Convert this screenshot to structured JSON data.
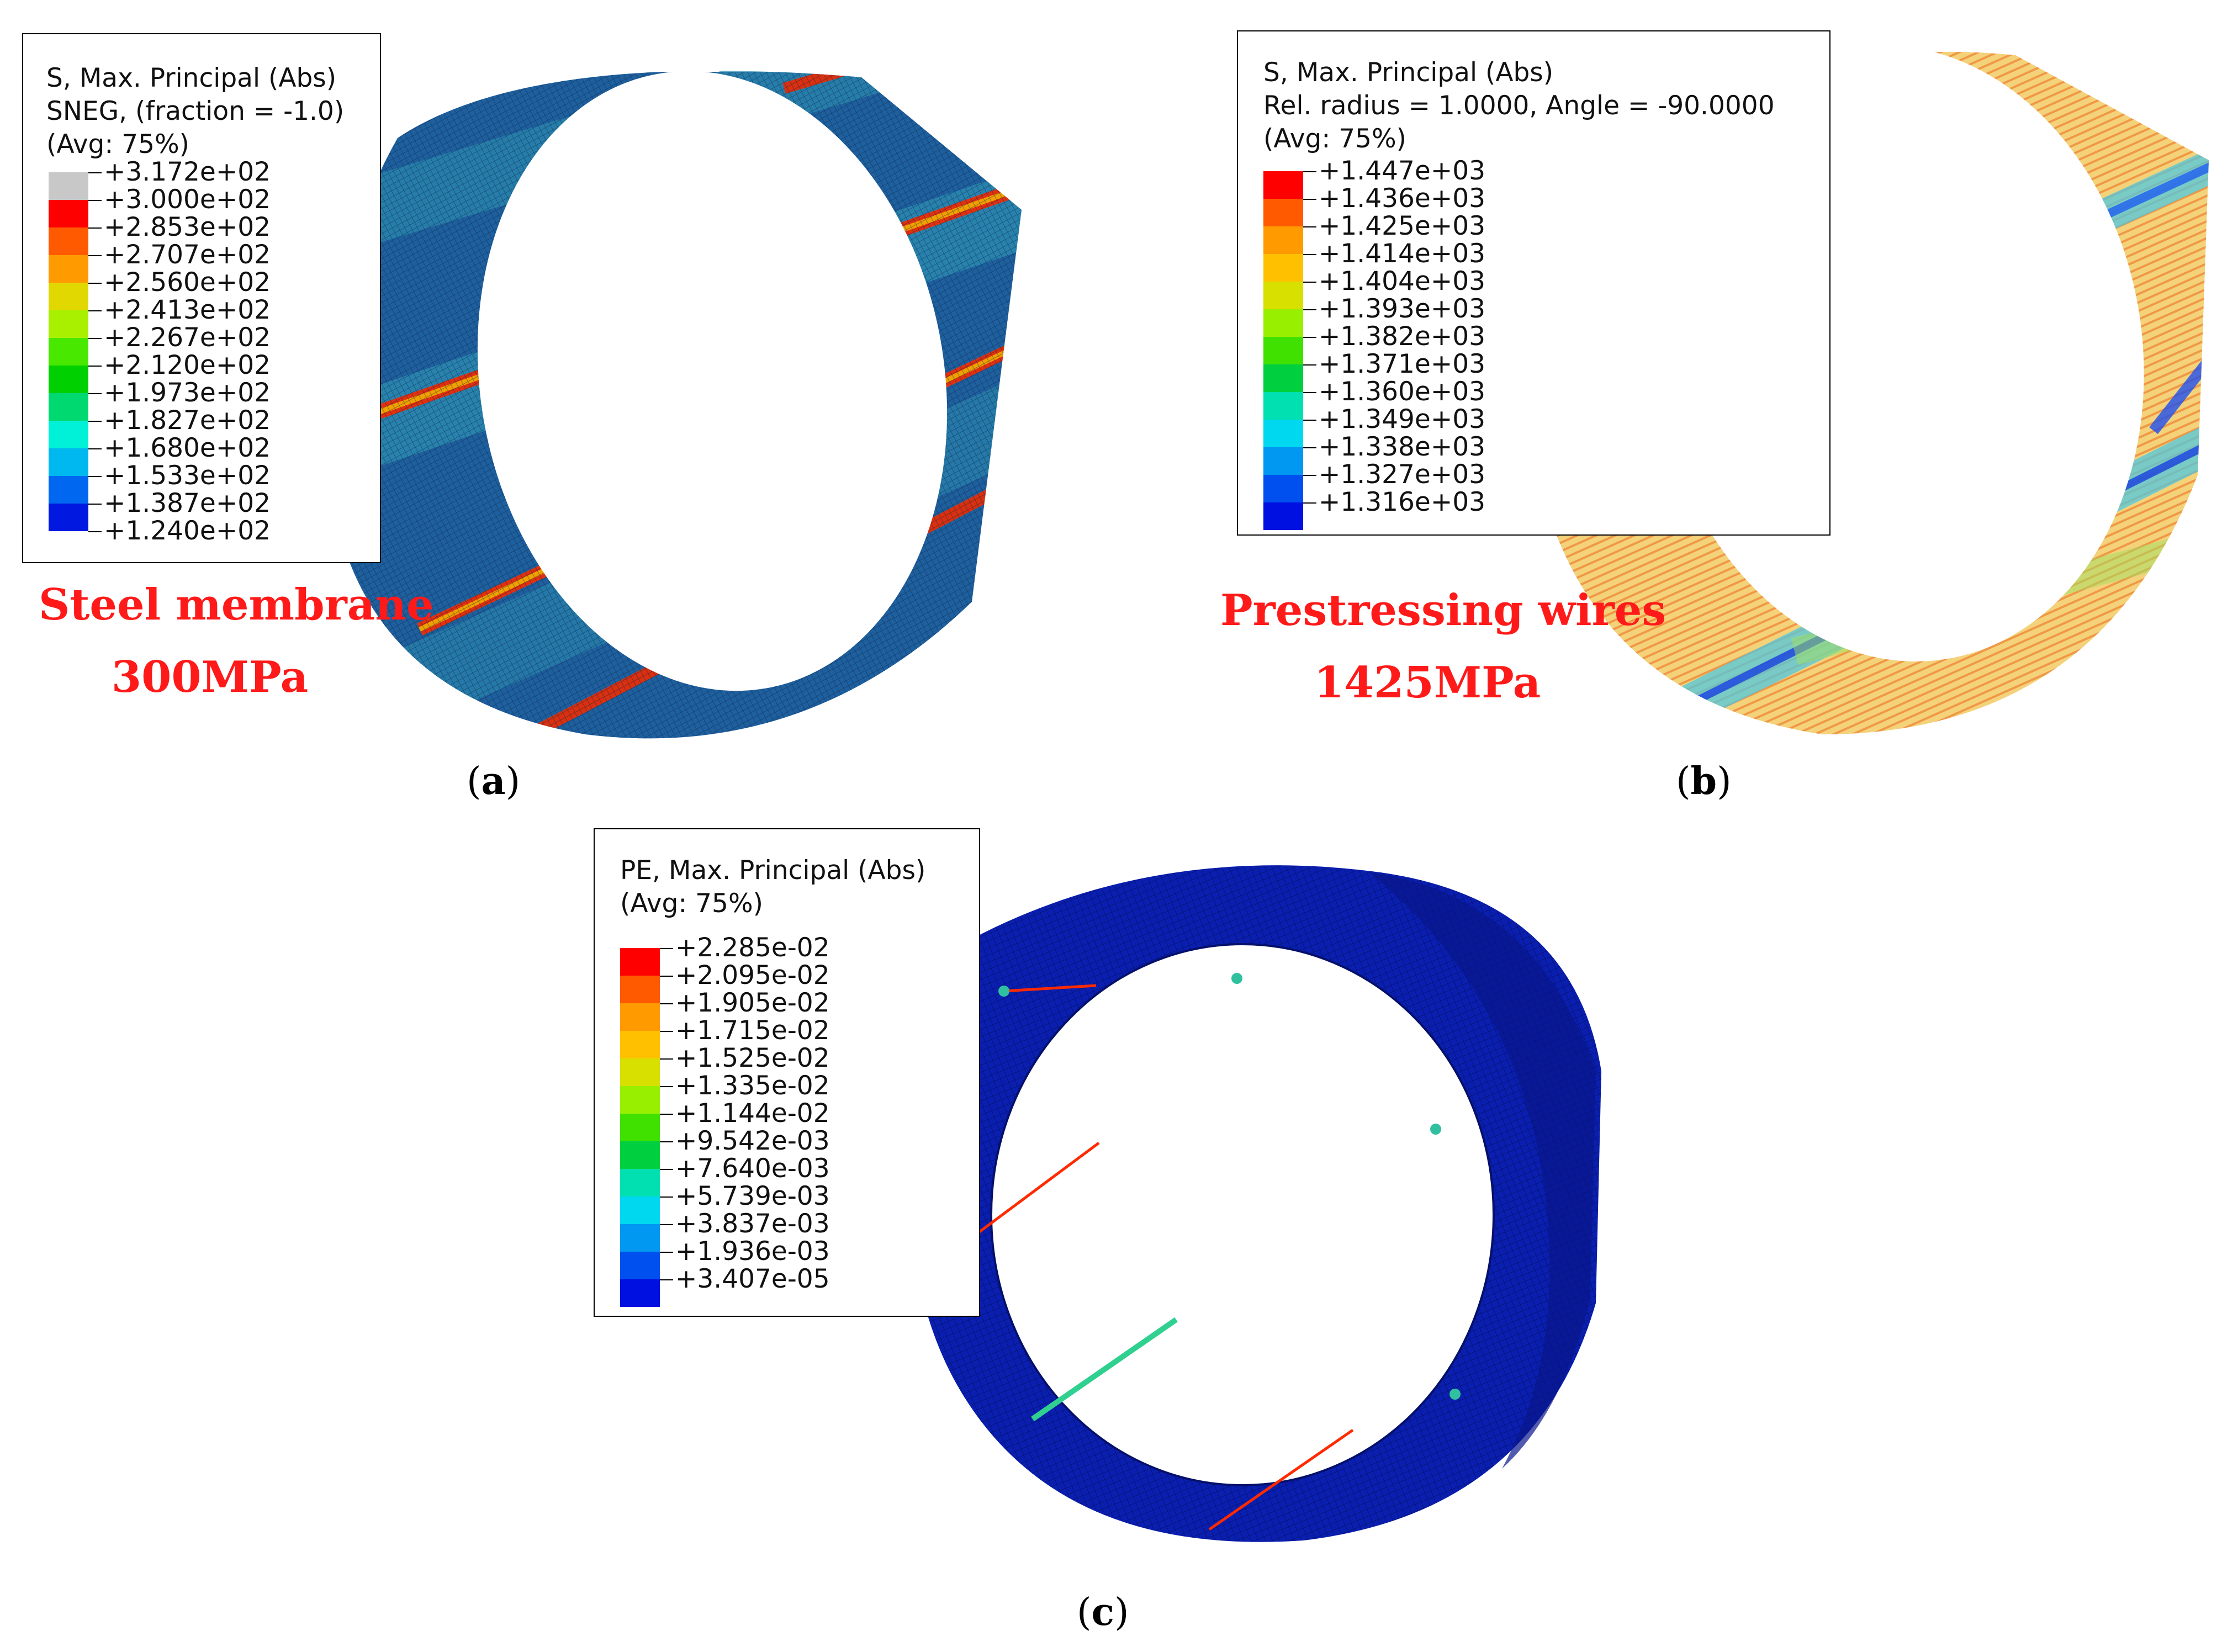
{
  "panels": {
    "a": {
      "caption_open": "(",
      "caption_letter": "a",
      "caption_close": ")",
      "legend": {
        "title_lines": [
          "S, Max. Principal (Abs)",
          "SNEG, (fraction = -1.0)",
          "(Avg: 75%)"
        ],
        "values": [
          "+3.172e+02",
          "+3.000e+02",
          "+2.853e+02",
          "+2.707e+02",
          "+2.560e+02",
          "+2.413e+02",
          "+2.267e+02",
          "+2.120e+02",
          "+1.973e+02",
          "+1.827e+02",
          "+1.680e+02",
          "+1.533e+02",
          "+1.387e+02",
          "+1.240e+02"
        ],
        "colors": [
          "#c8c8c8",
          "#ff0000",
          "#ff5a00",
          "#ff9a00",
          "#e0d800",
          "#a8f000",
          "#48e800",
          "#00d000",
          "#00d870",
          "#00f0d8",
          "#00b8f0",
          "#0068f0",
          "#0018e0"
        ]
      },
      "annotation_lines": [
        "Steel membrane",
        "300MPa"
      ]
    },
    "b": {
      "caption_open": "(",
      "caption_letter": "b",
      "caption_close": ")",
      "legend": {
        "title_lines": [
          "S, Max. Principal (Abs)",
          "Rel. radius = 1.0000, Angle = -90.0000",
          "(Avg: 75%)"
        ],
        "values": [
          "+1.447e+03",
          "+1.436e+03",
          "+1.425e+03",
          "+1.414e+03",
          "+1.404e+03",
          "+1.393e+03",
          "+1.382e+03",
          "+1.371e+03",
          "+1.360e+03",
          "+1.349e+03",
          "+1.338e+03",
          "+1.327e+03",
          "+1.316e+03"
        ],
        "colors": [
          "#ff0000",
          "#ff5a00",
          "#ff9a00",
          "#ffc000",
          "#d8e000",
          "#98f000",
          "#40e000",
          "#00d040",
          "#00e0b0",
          "#00d8f0",
          "#0098f0",
          "#0050f0",
          "#0010e0"
        ]
      },
      "annotation_lines": [
        "Prestressing wires",
        "1425MPa"
      ]
    },
    "c": {
      "caption_open": "(",
      "caption_letter": "c",
      "caption_close": ")",
      "legend": {
        "title_lines": [
          "PE, Max. Principal (Abs)",
          "(Avg: 75%)"
        ],
        "values": [
          "+2.285e-02",
          "+2.095e-02",
          "+1.905e-02",
          "+1.715e-02",
          "+1.525e-02",
          "+1.335e-02",
          "+1.144e-02",
          "+9.542e-03",
          "+7.640e-03",
          "+5.739e-03",
          "+3.837e-03",
          "+1.936e-03",
          "+3.407e-05"
        ],
        "colors": [
          "#ff0000",
          "#ff5a00",
          "#ff9a00",
          "#ffc000",
          "#d8e000",
          "#98f000",
          "#40e000",
          "#00d040",
          "#00e0b0",
          "#00d8f0",
          "#0098f0",
          "#0050f0",
          "#0010e0"
        ]
      }
    }
  },
  "colors": {
    "annotation": "#ff1a1a",
    "membrane_base": "#1f6fa8",
    "wire_base": "#f2c24a",
    "concrete_base": "#0a1fb0"
  }
}
